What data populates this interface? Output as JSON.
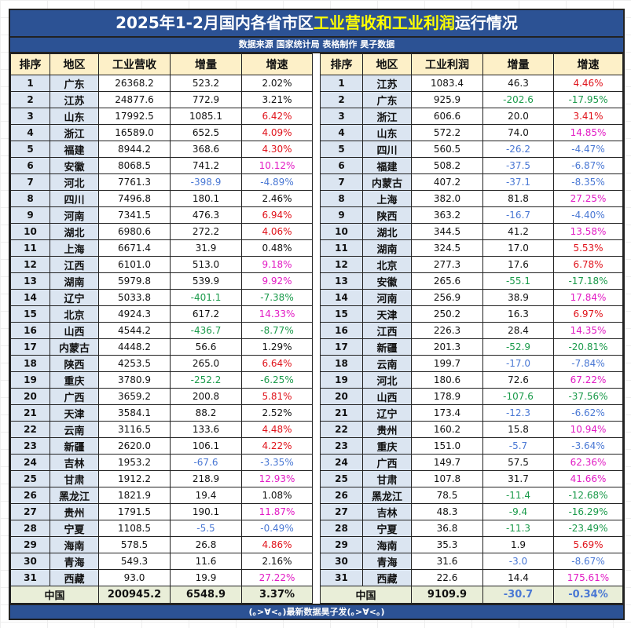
{
  "title": {
    "part1": "2025年1-2月国内各省市区",
    "highlight": "工业营收和工业利润",
    "part2": "运行情况"
  },
  "subtitle": "数据来源 国家统计局   表格制作 昊子数据",
  "colors": {
    "k": "#111111",
    "r": "#e0121a",
    "m": "#e21bc4",
    "b": "#4a78d4",
    "g": "#1a9a4a",
    "title_bg": "#2c5294",
    "highlight": "#ffff00"
  },
  "revenue_table": {
    "headers": [
      "排序",
      "地区",
      "工业营收",
      "增量",
      "增速"
    ],
    "rows": [
      [
        "1",
        "广东",
        "26368.2",
        "523.2",
        "2.02%",
        "k",
        "k"
      ],
      [
        "2",
        "江苏",
        "24877.6",
        "772.9",
        "3.21%",
        "k",
        "k"
      ],
      [
        "3",
        "山东",
        "17992.5",
        "1085.1",
        "6.42%",
        "k",
        "r"
      ],
      [
        "4",
        "浙江",
        "16589.0",
        "652.5",
        "4.09%",
        "k",
        "r"
      ],
      [
        "5",
        "福建",
        "8944.2",
        "368.6",
        "4.30%",
        "k",
        "r"
      ],
      [
        "6",
        "安徽",
        "8068.5",
        "741.2",
        "10.12%",
        "k",
        "m"
      ],
      [
        "7",
        "河北",
        "7761.3",
        "-398.9",
        "-4.89%",
        "b",
        "b"
      ],
      [
        "8",
        "四川",
        "7496.8",
        "180.1",
        "2.46%",
        "k",
        "k"
      ],
      [
        "9",
        "河南",
        "7341.5",
        "476.3",
        "6.94%",
        "k",
        "r"
      ],
      [
        "10",
        "湖北",
        "6980.6",
        "272.2",
        "4.06%",
        "k",
        "r"
      ],
      [
        "11",
        "上海",
        "6671.4",
        "31.9",
        "0.48%",
        "k",
        "k"
      ],
      [
        "12",
        "江西",
        "6101.0",
        "513.0",
        "9.18%",
        "k",
        "m"
      ],
      [
        "13",
        "湖南",
        "5979.8",
        "539.9",
        "9.92%",
        "k",
        "m"
      ],
      [
        "14",
        "辽宁",
        "5033.8",
        "-401.1",
        "-7.38%",
        "g",
        "g"
      ],
      [
        "15",
        "北京",
        "4924.3",
        "617.2",
        "14.33%",
        "k",
        "m"
      ],
      [
        "16",
        "山西",
        "4544.2",
        "-436.7",
        "-8.77%",
        "g",
        "g"
      ],
      [
        "17",
        "内蒙古",
        "4448.2",
        "56.6",
        "1.29%",
        "k",
        "k"
      ],
      [
        "18",
        "陕西",
        "4253.5",
        "265.0",
        "6.64%",
        "k",
        "r"
      ],
      [
        "19",
        "重庆",
        "3780.9",
        "-252.2",
        "-6.25%",
        "g",
        "g"
      ],
      [
        "20",
        "广西",
        "3659.2",
        "200.8",
        "5.81%",
        "k",
        "r"
      ],
      [
        "21",
        "天津",
        "3584.1",
        "88.2",
        "2.52%",
        "k",
        "k"
      ],
      [
        "22",
        "云南",
        "3116.5",
        "133.6",
        "4.48%",
        "k",
        "r"
      ],
      [
        "23",
        "新疆",
        "2620.0",
        "106.1",
        "4.22%",
        "k",
        "r"
      ],
      [
        "24",
        "吉林",
        "1953.2",
        "-67.6",
        "-3.35%",
        "b",
        "b"
      ],
      [
        "25",
        "甘肃",
        "1912.2",
        "218.9",
        "12.93%",
        "k",
        "m"
      ],
      [
        "26",
        "黑龙江",
        "1821.9",
        "19.4",
        "1.08%",
        "k",
        "k"
      ],
      [
        "27",
        "贵州",
        "1791.5",
        "190.1",
        "11.87%",
        "k",
        "m"
      ],
      [
        "28",
        "宁夏",
        "1108.5",
        "-5.5",
        "-0.49%",
        "b",
        "b"
      ],
      [
        "29",
        "海南",
        "578.5",
        "26.8",
        "4.86%",
        "k",
        "r"
      ],
      [
        "30",
        "青海",
        "549.3",
        "11.6",
        "2.16%",
        "k",
        "k"
      ],
      [
        "31",
        "西藏",
        "93.0",
        "19.9",
        "27.22%",
        "k",
        "m"
      ]
    ],
    "total": [
      "中国",
      "200945.2",
      "6548.9",
      "3.37%",
      "k",
      "k"
    ]
  },
  "profit_table": {
    "headers": [
      "排序",
      "地区",
      "工业利润",
      "增量",
      "增速"
    ],
    "rows": [
      [
        "1",
        "江苏",
        "1083.4",
        "46.3",
        "4.46%",
        "k",
        "r"
      ],
      [
        "2",
        "广东",
        "925.9",
        "-202.6",
        "-17.95%",
        "g",
        "g"
      ],
      [
        "3",
        "浙江",
        "606.6",
        "20.0",
        "3.41%",
        "k",
        "r"
      ],
      [
        "4",
        "山东",
        "572.2",
        "74.0",
        "14.85%",
        "k",
        "m"
      ],
      [
        "5",
        "四川",
        "560.5",
        "-26.2",
        "-4.47%",
        "b",
        "b"
      ],
      [
        "6",
        "福建",
        "508.2",
        "-37.5",
        "-6.87%",
        "b",
        "b"
      ],
      [
        "7",
        "内蒙古",
        "407.2",
        "-37.1",
        "-8.35%",
        "b",
        "b"
      ],
      [
        "8",
        "上海",
        "382.0",
        "81.8",
        "27.25%",
        "k",
        "m"
      ],
      [
        "9",
        "陕西",
        "363.2",
        "-16.7",
        "-4.40%",
        "b",
        "b"
      ],
      [
        "10",
        "湖北",
        "344.5",
        "41.2",
        "13.58%",
        "k",
        "m"
      ],
      [
        "11",
        "湖南",
        "324.5",
        "17.0",
        "5.53%",
        "k",
        "r"
      ],
      [
        "12",
        "北京",
        "277.3",
        "17.6",
        "6.78%",
        "k",
        "r"
      ],
      [
        "13",
        "安徽",
        "265.6",
        "-55.1",
        "-17.18%",
        "g",
        "g"
      ],
      [
        "14",
        "河南",
        "256.9",
        "38.9",
        "17.84%",
        "k",
        "m"
      ],
      [
        "15",
        "天津",
        "250.2",
        "16.3",
        "6.97%",
        "k",
        "r"
      ],
      [
        "16",
        "江西",
        "226.3",
        "28.4",
        "14.35%",
        "k",
        "m"
      ],
      [
        "17",
        "新疆",
        "201.3",
        "-52.9",
        "-20.81%",
        "g",
        "g"
      ],
      [
        "18",
        "云南",
        "199.7",
        "-17.0",
        "-7.84%",
        "b",
        "b"
      ],
      [
        "19",
        "河北",
        "180.6",
        "72.6",
        "67.22%",
        "k",
        "m"
      ],
      [
        "20",
        "山西",
        "178.9",
        "-107.6",
        "-37.56%",
        "g",
        "g"
      ],
      [
        "21",
        "辽宁",
        "173.4",
        "-12.3",
        "-6.62%",
        "b",
        "b"
      ],
      [
        "22",
        "贵州",
        "160.2",
        "15.8",
        "10.94%",
        "k",
        "m"
      ],
      [
        "23",
        "重庆",
        "151.0",
        "-5.7",
        "-3.64%",
        "b",
        "b"
      ],
      [
        "24",
        "广西",
        "149.7",
        "57.5",
        "62.36%",
        "k",
        "m"
      ],
      [
        "25",
        "甘肃",
        "107.8",
        "31.7",
        "41.66%",
        "k",
        "m"
      ],
      [
        "26",
        "黑龙江",
        "78.5",
        "-11.4",
        "-12.68%",
        "g",
        "g"
      ],
      [
        "27",
        "吉林",
        "48.3",
        "-9.4",
        "-16.29%",
        "g",
        "g"
      ],
      [
        "28",
        "宁夏",
        "36.8",
        "-11.3",
        "-23.49%",
        "g",
        "g"
      ],
      [
        "29",
        "海南",
        "35.3",
        "1.9",
        "5.69%",
        "k",
        "r"
      ],
      [
        "30",
        "青海",
        "31.6",
        "-3.0",
        "-8.67%",
        "b",
        "b"
      ],
      [
        "31",
        "西藏",
        "22.6",
        "14.4",
        "175.61%",
        "k",
        "m"
      ]
    ],
    "total": [
      "中国",
      "9109.9",
      "-30.7",
      "-0.34%",
      "b",
      "b"
    ]
  },
  "footer": "(｡>∀<｡)最新数据昊子发(｡>∀<｡)"
}
